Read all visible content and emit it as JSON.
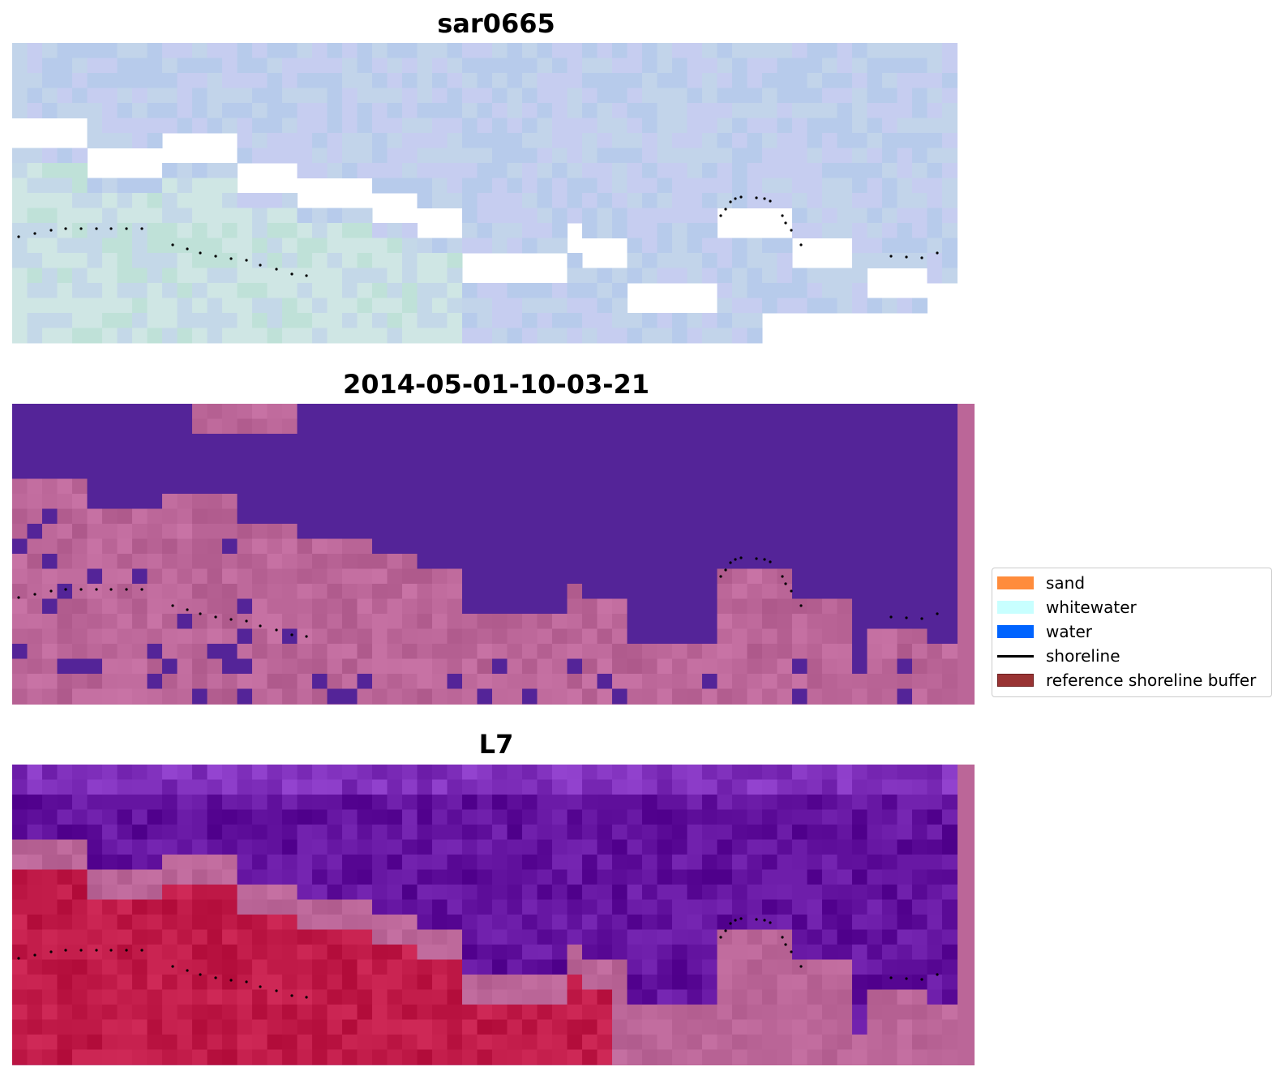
{
  "panels": [
    {
      "id": "sar",
      "title": "sar0665"
    },
    {
      "id": "date",
      "title": "2014-05-01-10-03-21"
    },
    {
      "id": "sat",
      "title": "L7"
    }
  ],
  "legend": {
    "items": [
      {
        "label": "sand",
        "kind": "patch",
        "color": "#ff8c3c"
      },
      {
        "label": "whitewater",
        "kind": "patch",
        "color": "#c8ffff"
      },
      {
        "label": "water",
        "kind": "patch",
        "color": "#0064ff"
      },
      {
        "label": "shoreline",
        "kind": "line",
        "color": "#000000"
      },
      {
        "label": "reference shoreline buffer",
        "kind": "patch",
        "color": "#993333",
        "edge": "#6e1e1e"
      }
    ]
  },
  "colors": {
    "sar_base": "#bcc8ec",
    "date_water": "#542498",
    "date_land": "#bb6698",
    "sat_water": "#62129e",
    "sat_land": "#bb6698",
    "sat_red": "#c01a48",
    "shoreline": "#000000"
  }
}
